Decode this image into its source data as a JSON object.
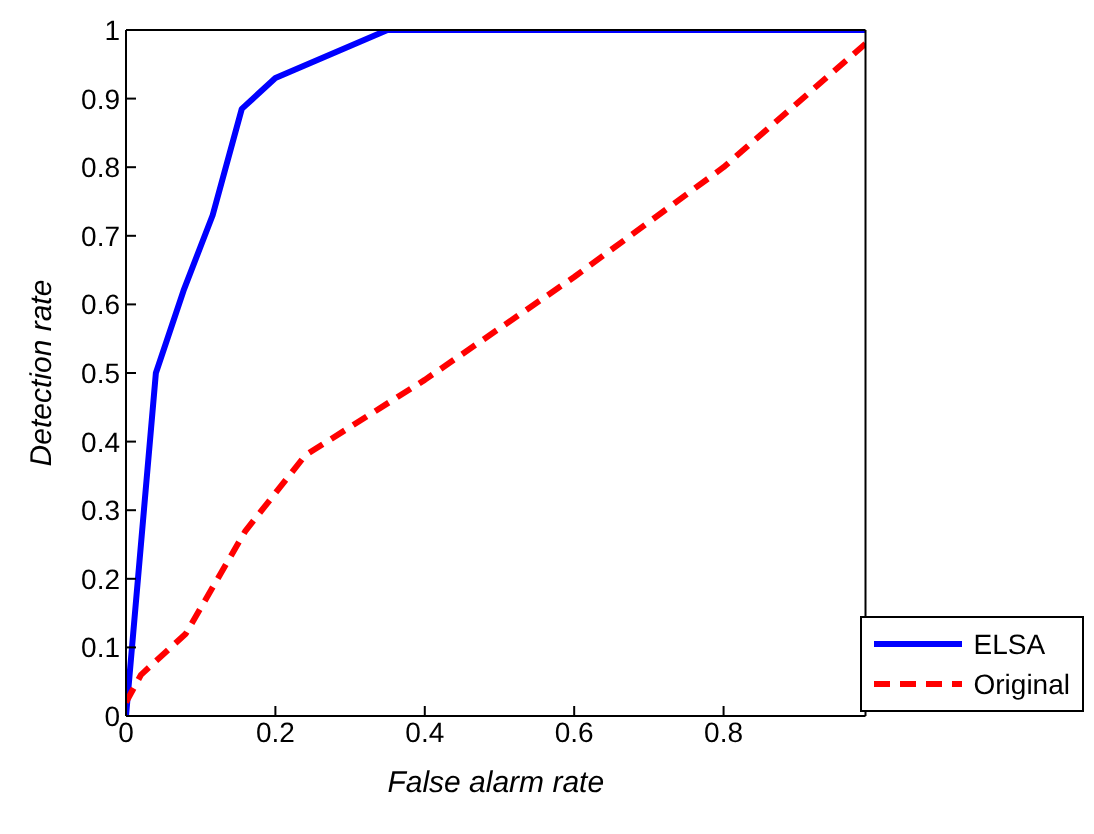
{
  "chart_data": {
    "type": "line",
    "xlabel": "False alarm rate",
    "ylabel": "Detection rate",
    "xlim": [
      0,
      0.99
    ],
    "ylim": [
      0,
      1
    ],
    "xticks": [
      0,
      0.2,
      0.4,
      0.6,
      0.8
    ],
    "yticks": [
      0,
      0.1,
      0.2,
      0.3,
      0.4,
      0.5,
      0.6,
      0.7,
      0.8,
      0.9,
      1
    ],
    "grid": false,
    "legend": "bottom right",
    "marker": "none",
    "series": [
      {
        "name": "ELSA",
        "color": "#0000ff",
        "line_style": "solid",
        "x": [
          0,
          0.04,
          0.077,
          0.116,
          0.155,
          0.2,
          0.35,
          0.99
        ],
        "values": [
          0,
          0.5,
          0.62,
          0.73,
          0.885,
          0.93,
          1,
          1
        ]
      },
      {
        "name": "Original",
        "color": "#ff0000",
        "line_style": "dashed",
        "x": [
          0,
          0.02,
          0.08,
          0.16,
          0.24,
          0.4,
          0.6,
          0.8,
          0.99
        ],
        "values": [
          0.02,
          0.06,
          0.12,
          0.27,
          0.38,
          0.49,
          0.64,
          0.8,
          0.98
        ]
      }
    ]
  }
}
